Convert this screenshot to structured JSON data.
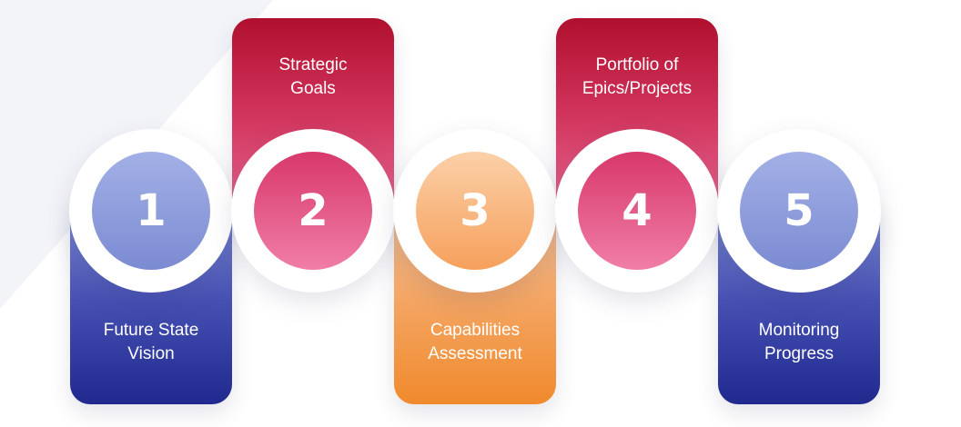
{
  "steps": [
    {
      "number": "1",
      "label": [
        "Future State",
        "Vision"
      ],
      "color": "#3b45ab"
    },
    {
      "number": "2",
      "label": [
        "Strategic",
        "Goals"
      ],
      "color": "#c81f47"
    },
    {
      "number": "3",
      "label": [
        "Capabilities",
        "Assessment"
      ],
      "color": "#f4a05a"
    },
    {
      "number": "4",
      "label": [
        "Portfolio of",
        "Epics/Projects"
      ],
      "color": "#c81f47"
    },
    {
      "number": "5",
      "label": [
        "Monitoring",
        "Progress"
      ],
      "color": "#3b45ab"
    }
  ]
}
